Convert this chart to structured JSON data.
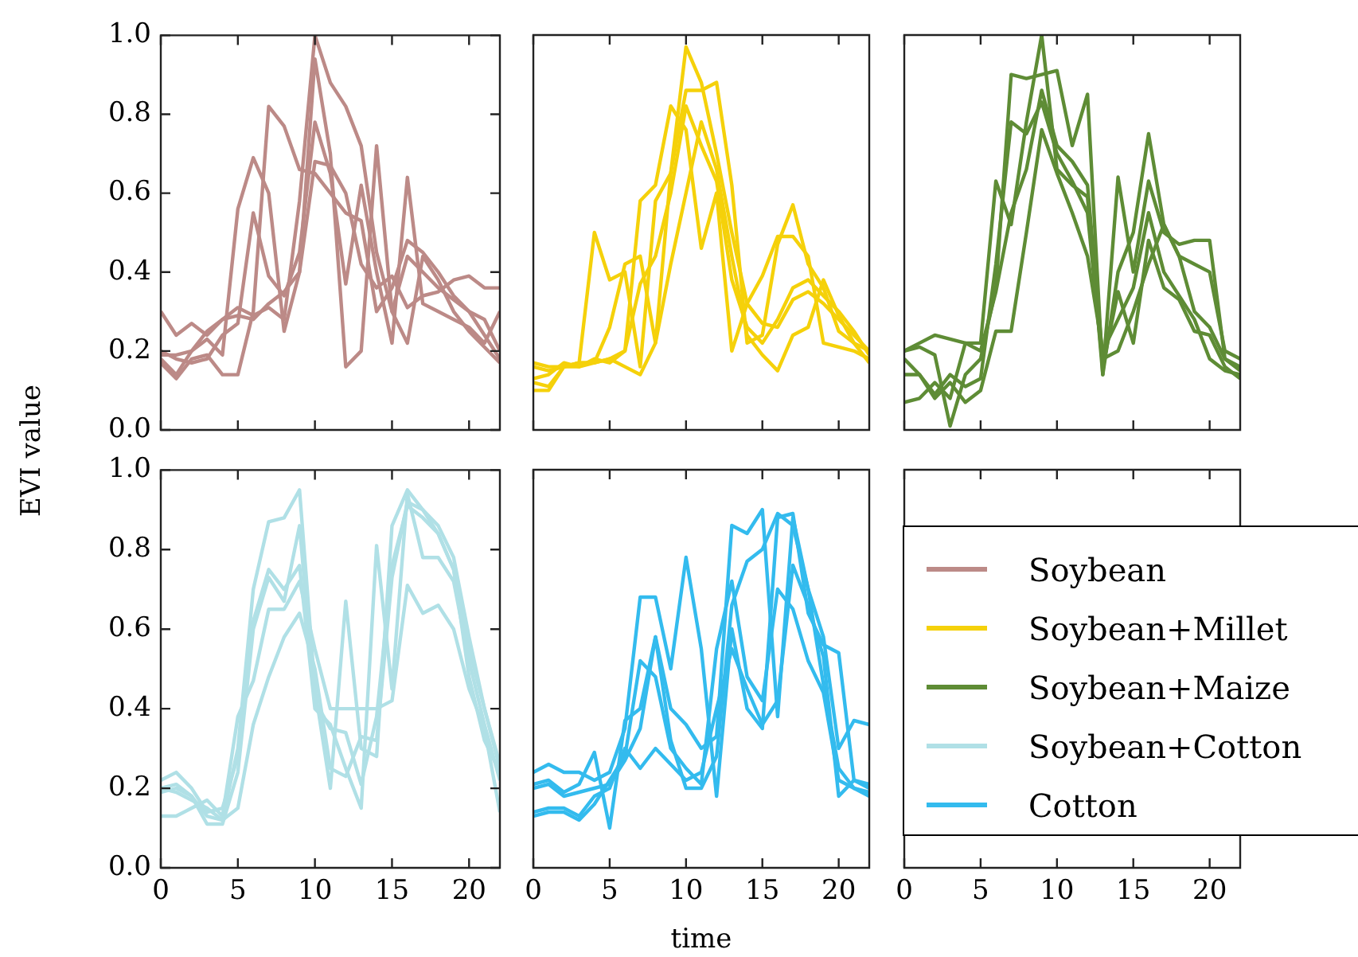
{
  "chart_data": [
    {
      "type": "line",
      "ylabel": "EVI value",
      "legend": "right",
      "tick_labels": "y",
      "xlim": [
        0,
        22
      ],
      "xticks": [
        0,
        5,
        10,
        15,
        20
      ],
      "ylim": [
        0,
        1
      ],
      "yticks": [
        {
          "value": 0,
          "label": "0.0"
        },
        {
          "value": 0.2,
          "label": "0.2"
        },
        {
          "value": 0.4,
          "label": "0.4"
        },
        {
          "value": 0.6,
          "label": "0.6"
        },
        {
          "value": 0.8,
          "label": "0.8"
        },
        {
          "value": 1,
          "label": "1.0"
        }
      ],
      "x": [
        0,
        1,
        2,
        3,
        4,
        5,
        6,
        7,
        8,
        9,
        10,
        11,
        12,
        13,
        14,
        15,
        16,
        17,
        18,
        19,
        20,
        21,
        22
      ],
      "marker": "none",
      "series": [
        {
          "name": "Soybean",
          "color": "#bc8a87",
          "values": [
            0.3,
            0.24,
            0.27,
            0.24,
            0.28,
            0.31,
            0.29,
            0.31,
            0.28,
            0.58,
            1.0,
            0.88,
            0.82,
            0.72,
            0.45,
            0.3,
            0.44,
            0.4,
            0.36,
            0.33,
            0.3,
            0.24,
            0.18
          ]
        },
        {
          "color": "#bc8a87",
          "values": [
            0.18,
            0.14,
            0.2,
            0.23,
            0.19,
            0.56,
            0.69,
            0.6,
            0.25,
            0.4,
            0.94,
            0.7,
            0.16,
            0.2,
            0.72,
            0.3,
            0.22,
            0.44,
            0.38,
            0.3,
            0.25,
            0.21,
            0.17
          ]
        },
        {
          "color": "#bc8a87",
          "values": [
            0.2,
            0.18,
            0.17,
            0.18,
            0.24,
            0.27,
            0.55,
            0.39,
            0.34,
            0.45,
            0.78,
            0.65,
            0.37,
            0.62,
            0.4,
            0.22,
            0.64,
            0.32,
            0.3,
            0.28,
            0.26,
            0.22,
            0.3
          ]
        },
        {
          "color": "#bc8a87",
          "values": [
            0.17,
            0.13,
            0.18,
            0.19,
            0.14,
            0.14,
            0.3,
            0.82,
            0.77,
            0.66,
            0.65,
            0.6,
            0.55,
            0.53,
            0.3,
            0.36,
            0.48,
            0.45,
            0.4,
            0.34,
            0.3,
            0.28,
            0.2
          ]
        },
        {
          "color": "#bc8a87",
          "values": [
            0.19,
            0.19,
            0.2,
            0.25,
            0.28,
            0.29,
            0.28,
            0.32,
            0.35,
            0.4,
            0.68,
            0.67,
            0.6,
            0.42,
            0.36,
            0.39,
            0.31,
            0.34,
            0.35,
            0.38,
            0.39,
            0.36,
            0.36
          ]
        }
      ]
    },
    {
      "type": "line",
      "legend": "right",
      "tick_labels": false,
      "xlim": [
        0,
        22
      ],
      "xticks": [
        0,
        5,
        10,
        15,
        20
      ],
      "ylim": [
        0,
        1
      ],
      "yticks": [
        {
          "value": 0,
          "label": null
        },
        {
          "value": 0.2,
          "label": null
        },
        {
          "value": 0.4,
          "label": null
        },
        {
          "value": 0.6,
          "label": null
        },
        {
          "value": 0.8,
          "label": null
        },
        {
          "value": 1,
          "label": null
        }
      ],
      "x": [
        0,
        1,
        2,
        3,
        4,
        5,
        6,
        7,
        8,
        9,
        10,
        11,
        12,
        13,
        14,
        15,
        16,
        17,
        18,
        19,
        20,
        21,
        22
      ],
      "marker": "none",
      "series": [
        {
          "name": "Soybean+Millet",
          "color": "#f5d10a",
          "values": [
            0.17,
            0.16,
            0.16,
            0.17,
            0.5,
            0.38,
            0.4,
            0.16,
            0.58,
            0.65,
            0.97,
            0.88,
            0.7,
            0.5,
            0.32,
            0.27,
            0.26,
            0.33,
            0.35,
            0.32,
            0.28,
            0.24,
            0.2
          ]
        },
        {
          "color": "#f5d10a",
          "values": [
            0.12,
            0.11,
            0.16,
            0.17,
            0.17,
            0.26,
            0.42,
            0.44,
            0.22,
            0.65,
            0.86,
            0.86,
            0.88,
            0.62,
            0.22,
            0.24,
            0.47,
            0.57,
            0.42,
            0.36,
            0.25,
            0.22,
            0.2
          ]
        },
        {
          "color": "#f5d10a",
          "values": [
            0.13,
            0.14,
            0.17,
            0.16,
            0.17,
            0.18,
            0.2,
            0.58,
            0.62,
            0.82,
            0.76,
            0.46,
            0.6,
            0.2,
            0.32,
            0.39,
            0.49,
            0.49,
            0.44,
            0.22,
            0.21,
            0.2,
            0.18
          ]
        },
        {
          "color": "#f5d10a",
          "values": [
            0.1,
            0.1,
            0.16,
            0.17,
            0.17,
            0.18,
            0.16,
            0.14,
            0.22,
            0.42,
            0.6,
            0.78,
            0.66,
            0.44,
            0.24,
            0.19,
            0.15,
            0.24,
            0.26,
            0.38,
            0.29,
            0.22,
            0.17
          ]
        },
        {
          "color": "#f5d10a",
          "values": [
            0.16,
            0.15,
            0.16,
            0.16,
            0.18,
            0.17,
            0.2,
            0.37,
            0.44,
            0.6,
            0.82,
            0.72,
            0.63,
            0.38,
            0.26,
            0.22,
            0.28,
            0.36,
            0.38,
            0.34,
            0.3,
            0.25,
            0.19
          ]
        }
      ]
    },
    {
      "type": "line",
      "legend": "right",
      "tick_labels": false,
      "xlim": [
        0,
        22
      ],
      "xticks": [
        0,
        5,
        10,
        15,
        20
      ],
      "ylim": [
        0,
        1
      ],
      "yticks": [
        {
          "value": 0,
          "label": null
        },
        {
          "value": 0.2,
          "label": null
        },
        {
          "value": 0.4,
          "label": null
        },
        {
          "value": 0.6,
          "label": null
        },
        {
          "value": 0.8,
          "label": null
        },
        {
          "value": 1,
          "label": null
        }
      ],
      "x": [
        0,
        1,
        2,
        3,
        4,
        5,
        6,
        7,
        8,
        9,
        10,
        11,
        12,
        13,
        14,
        15,
        16,
        17,
        18,
        19,
        20,
        21,
        22
      ],
      "marker": "none",
      "series": [
        {
          "name": "Soybean+Maize",
          "color": "#5e8c35",
          "values": [
            0.2,
            0.21,
            0.19,
            0.01,
            0.14,
            0.18,
            0.36,
            0.9,
            0.89,
            0.9,
            0.91,
            0.72,
            0.85,
            0.14,
            0.4,
            0.5,
            0.75,
            0.52,
            0.44,
            0.42,
            0.4,
            0.2,
            0.18
          ]
        },
        {
          "color": "#5e8c35",
          "values": [
            0.07,
            0.08,
            0.12,
            0.08,
            0.22,
            0.22,
            0.63,
            0.52,
            0.78,
            1.0,
            0.66,
            0.62,
            0.59,
            0.14,
            0.64,
            0.4,
            0.63,
            0.5,
            0.47,
            0.48,
            0.48,
            0.18,
            0.16
          ]
        },
        {
          "color": "#5e8c35",
          "values": [
            0.14,
            0.14,
            0.09,
            0.14,
            0.11,
            0.13,
            0.42,
            0.78,
            0.75,
            0.83,
            0.7,
            0.63,
            0.55,
            0.16,
            0.35,
            0.22,
            0.48,
            0.36,
            0.33,
            0.25,
            0.24,
            0.16,
            0.13
          ]
        },
        {
          "color": "#5e8c35",
          "values": [
            0.2,
            0.22,
            0.24,
            0.23,
            0.22,
            0.2,
            0.35,
            0.55,
            0.66,
            0.86,
            0.72,
            0.68,
            0.62,
            0.18,
            0.2,
            0.3,
            0.42,
            0.52,
            0.44,
            0.3,
            0.26,
            0.18,
            0.15
          ]
        },
        {
          "color": "#5e8c35",
          "values": [
            0.18,
            0.14,
            0.08,
            0.12,
            0.07,
            0.1,
            0.25,
            0.25,
            0.5,
            0.76,
            0.65,
            0.55,
            0.44,
            0.2,
            0.28,
            0.36,
            0.55,
            0.4,
            0.34,
            0.28,
            0.18,
            0.15,
            0.14
          ]
        }
      ]
    },
    {
      "type": "line",
      "legend": "right",
      "xlim": [
        0,
        22
      ],
      "xticks": [
        0,
        5,
        10,
        15,
        20
      ],
      "ylim": [
        0,
        1
      ],
      "yticks": [
        {
          "value": 0,
          "label": "0.0"
        },
        {
          "value": 0.2,
          "label": "0.2"
        },
        {
          "value": 0.4,
          "label": "0.4"
        },
        {
          "value": 0.6,
          "label": "0.6"
        },
        {
          "value": 0.8,
          "label": "0.8"
        },
        {
          "value": 1,
          "label": "1.0"
        }
      ],
      "x": [
        0,
        1,
        2,
        3,
        4,
        5,
        6,
        7,
        8,
        9,
        10,
        11,
        12,
        13,
        14,
        15,
        16,
        17,
        18,
        19,
        20,
        21,
        22
      ],
      "marker": "none",
      "series": [
        {
          "name": "Soybean+Cotton",
          "color": "#b0e0e6",
          "values": [
            0.2,
            0.21,
            0.18,
            0.13,
            0.12,
            0.3,
            0.7,
            0.87,
            0.88,
            0.95,
            0.45,
            0.2,
            0.67,
            0.3,
            0.28,
            0.86,
            0.95,
            0.9,
            0.86,
            0.78,
            0.58,
            0.4,
            0.25
          ]
        },
        {
          "color": "#b0e0e6",
          "values": [
            0.22,
            0.24,
            0.2,
            0.14,
            0.15,
            0.28,
            0.62,
            0.75,
            0.7,
            0.76,
            0.4,
            0.36,
            0.25,
            0.15,
            0.81,
            0.45,
            0.94,
            0.78,
            0.78,
            0.72,
            0.52,
            0.36,
            0.22
          ]
        },
        {
          "color": "#b0e0e6",
          "values": [
            0.19,
            0.2,
            0.18,
            0.11,
            0.11,
            0.24,
            0.6,
            0.73,
            0.67,
            0.86,
            0.42,
            0.35,
            0.34,
            0.21,
            0.38,
            0.76,
            0.91,
            0.88,
            0.84,
            0.75,
            0.55,
            0.4,
            0.26
          ]
        },
        {
          "color": "#b0e0e6",
          "values": [
            0.13,
            0.13,
            0.15,
            0.17,
            0.13,
            0.38,
            0.47,
            0.65,
            0.65,
            0.72,
            0.55,
            0.4,
            0.4,
            0.4,
            0.4,
            0.42,
            0.71,
            0.64,
            0.66,
            0.6,
            0.45,
            0.35,
            0.14
          ]
        },
        {
          "color": "#b0e0e6",
          "values": [
            0.2,
            0.19,
            0.17,
            0.15,
            0.12,
            0.15,
            0.36,
            0.48,
            0.58,
            0.64,
            0.5,
            0.25,
            0.23,
            0.33,
            0.32,
            0.73,
            0.92,
            0.9,
            0.84,
            0.75,
            0.48,
            0.32,
            0.24
          ]
        }
      ]
    },
    {
      "type": "line",
      "xlabel": "time",
      "legend": "right",
      "tick_labels": "x",
      "xlim": [
        0,
        22
      ],
      "xticks": [
        0,
        5,
        10,
        15,
        20
      ],
      "ylim": [
        0,
        1
      ],
      "yticks": [
        {
          "value": 0,
          "label": null
        },
        {
          "value": 0.2,
          "label": null
        },
        {
          "value": 0.4,
          "label": null
        },
        {
          "value": 0.6,
          "label": null
        },
        {
          "value": 0.8,
          "label": null
        },
        {
          "value": 1,
          "label": null
        }
      ],
      "x": [
        0,
        1,
        2,
        3,
        4,
        5,
        6,
        7,
        8,
        9,
        10,
        11,
        12,
        13,
        14,
        15,
        16,
        17,
        18,
        19,
        20,
        21,
        22
      ],
      "marker": "none",
      "series": [
        {
          "name": "Cotton",
          "color": "#33bbee",
          "values": [
            0.24,
            0.26,
            0.24,
            0.24,
            0.22,
            0.24,
            0.35,
            0.68,
            0.68,
            0.5,
            0.78,
            0.55,
            0.18,
            0.6,
            0.4,
            0.35,
            0.88,
            0.89,
            0.64,
            0.56,
            0.54,
            0.22,
            0.21
          ]
        },
        {
          "color": "#33bbee",
          "values": [
            0.21,
            0.22,
            0.19,
            0.21,
            0.29,
            0.1,
            0.37,
            0.4,
            0.58,
            0.4,
            0.36,
            0.3,
            0.33,
            0.86,
            0.84,
            0.9,
            0.38,
            0.88,
            0.7,
            0.58,
            0.3,
            0.37,
            0.36
          ]
        },
        {
          "color": "#33bbee",
          "values": [
            0.14,
            0.15,
            0.15,
            0.13,
            0.18,
            0.2,
            0.3,
            0.25,
            0.3,
            0.26,
            0.22,
            0.24,
            0.4,
            0.55,
            0.45,
            0.36,
            0.42,
            0.76,
            0.66,
            0.53,
            0.18,
            0.22,
            0.2
          ]
        },
        {
          "color": "#33bbee",
          "values": [
            0.2,
            0.21,
            0.18,
            0.19,
            0.2,
            0.21,
            0.27,
            0.35,
            0.58,
            0.32,
            0.2,
            0.2,
            0.28,
            0.66,
            0.77,
            0.8,
            0.89,
            0.86,
            0.7,
            0.46,
            0.25,
            0.2,
            0.18
          ]
        },
        {
          "color": "#33bbee",
          "values": [
            0.13,
            0.14,
            0.14,
            0.12,
            0.16,
            0.22,
            0.28,
            0.52,
            0.48,
            0.3,
            0.25,
            0.21,
            0.55,
            0.72,
            0.48,
            0.42,
            0.7,
            0.65,
            0.52,
            0.44,
            0.22,
            0.2,
            0.19
          ]
        }
      ]
    },
    {
      "type": "line",
      "tick_labels": "x",
      "xlim": [
        0,
        22
      ],
      "xticks": [
        0,
        5,
        10,
        15,
        20
      ],
      "ylim": [
        0,
        1
      ],
      "yticks": [
        {
          "value": 0,
          "label": null
        },
        {
          "value": 0.2,
          "label": null
        },
        {
          "value": 0.4,
          "label": null
        },
        {
          "value": 0.6,
          "label": null
        },
        {
          "value": 0.8,
          "label": null
        },
        {
          "value": 1,
          "label": null
        }
      ]
    }
  ]
}
